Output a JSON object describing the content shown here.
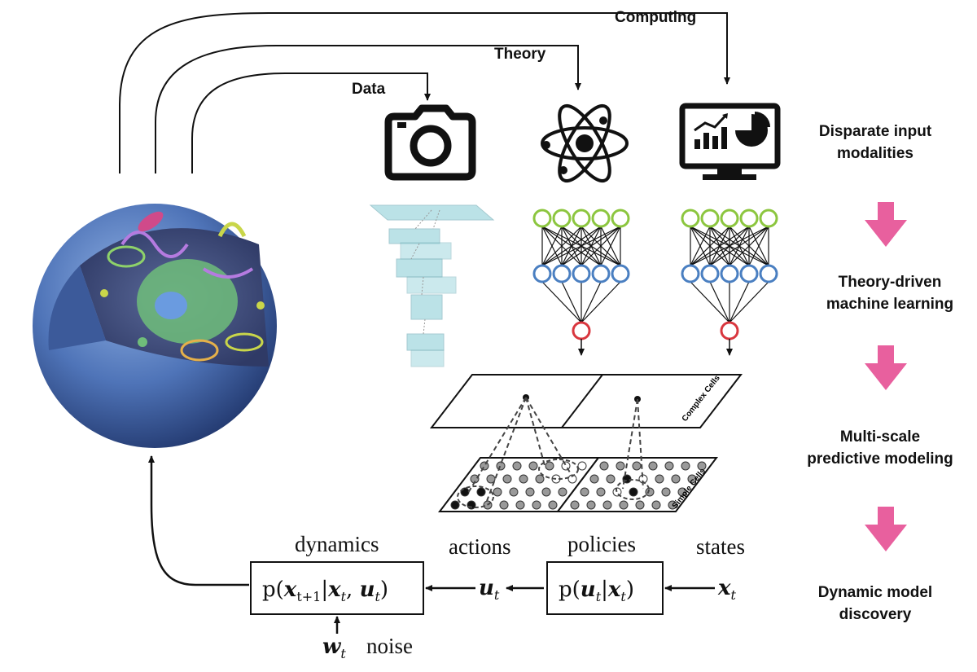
{
  "inputs": {
    "data_label": "Data",
    "theory_label": "Theory",
    "computing_label": "Computing"
  },
  "stages": [
    {
      "line1": "Disparate input",
      "line2": "modalities"
    },
    {
      "line1": "Theory-driven",
      "line2": "machine learning"
    },
    {
      "line1": "Multi-scale",
      "line2": "predictive modeling"
    },
    {
      "line1": "Dynamic model",
      "line2": "discovery"
    }
  ],
  "cells": {
    "complex_label": "Complex Cells",
    "simple_label": "Simple Cells"
  },
  "loop": {
    "dynamics_label": "dynamics",
    "actions_label": "actions",
    "policies_label": "policies",
    "states_label": "states",
    "noise_label": "noise"
  },
  "colors": {
    "stage_arrow": "#e8609e",
    "nn_input": "#8cc63f",
    "nn_hidden": "#4a7fc1",
    "nn_output": "#d9363e",
    "cell_membrane": "#4f74b8",
    "cnn_block": "#8ecfd8"
  },
  "icons": [
    "camera-icon",
    "atom-icon",
    "monitor-chart-icon"
  ]
}
